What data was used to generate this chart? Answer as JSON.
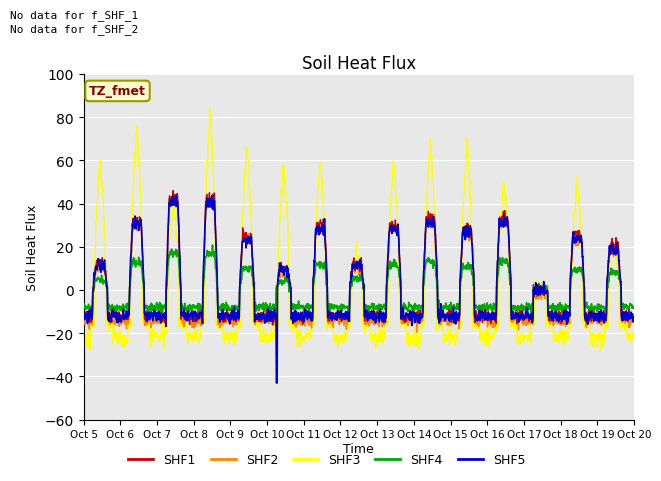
{
  "title": "Soil Heat Flux",
  "ylabel": "Soil Heat Flux",
  "xlabel": "Time",
  "xlabels": [
    "Oct 5",
    "Oct 6",
    "Oct 7",
    "Oct 8",
    "Oct 9",
    "Oct 10",
    "Oct 11",
    "Oct 12",
    "Oct 13",
    "Oct 14",
    "Oct 15",
    "Oct 16",
    "Oct 17",
    "Oct 18",
    "Oct 19",
    "Oct 20"
  ],
  "ylim": [
    -60,
    100
  ],
  "yticks": [
    -60,
    -40,
    -20,
    0,
    20,
    40,
    60,
    80,
    100
  ],
  "text_no_data_1": "No data for f_SHF_1",
  "text_no_data_2": "No data for f_SHF_2",
  "legend_box_label": "TZ_fmet",
  "legend_box_color": "#FFFFCC",
  "legend_box_edgecolor": "#999900",
  "colors": {
    "SHF1": "#CC0000",
    "SHF2": "#FF8800",
    "SHF3": "#FFFF00",
    "SHF4": "#00AA00",
    "SHF5": "#0000CC"
  },
  "background_color": "#E8E8E8",
  "fig_background": "#FFFFFF",
  "n_days": 15,
  "n_per_day": 96,
  "night_base_shf135": -12,
  "night_base_shf3_low": -22,
  "deep_dip_day": 5,
  "deep_dip_val": -43
}
